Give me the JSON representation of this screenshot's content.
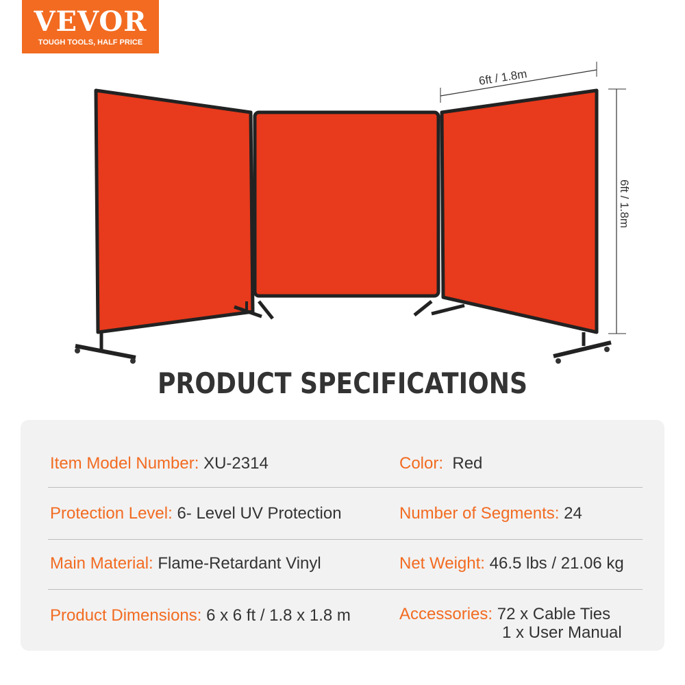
{
  "logo": {
    "brand": "VEVOR",
    "tagline": "TOUGH TOOLS, HALF PRICE",
    "color": "#f26b21"
  },
  "product": {
    "width_label": "6ft / 1.8m",
    "height_label": "6ft / 1.8m",
    "screen_color": "#e83a1c",
    "frame_color": "#222222"
  },
  "title": "PRODUCT SPECIFICATIONS",
  "specs": {
    "left": [
      {
        "label": "Item Model Number:",
        "value": "XU-2314"
      },
      {
        "label": "Protection Level:",
        "value": "6- Level UV Protection"
      },
      {
        "label": "Main Material:",
        "value": "Flame-Retardant Vinyl"
      },
      {
        "label": "Product Dimensions:",
        "value": "6 x 6 ft / 1.8 x 1.8 m"
      }
    ],
    "right": [
      {
        "label": "Color:",
        "value": "Red"
      },
      {
        "label": "Number of Segments:",
        "value": "24"
      },
      {
        "label": "Net Weight:",
        "value": "46.5 lbs / 21.06 kg"
      },
      {
        "label": "Accessories:",
        "value": "72 x Cable Ties",
        "value2": "1 x User Manual"
      }
    ]
  }
}
